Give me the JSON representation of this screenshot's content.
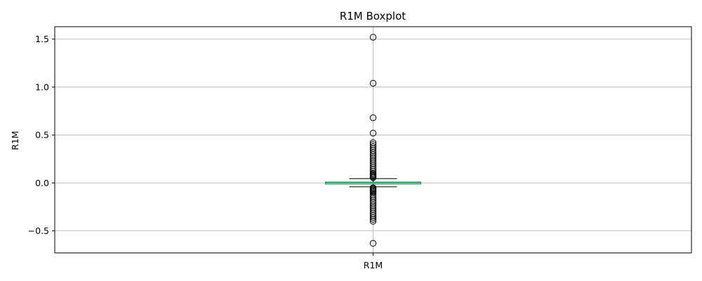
{
  "chart_data": {
    "type": "boxplot",
    "title": "R1M Boxplot",
    "xlabel": "",
    "ylabel": "R1M",
    "categories": [
      "R1M"
    ],
    "ylim": [
      -0.73,
      1.63
    ],
    "yticks": [
      -0.5,
      0.0,
      0.5,
      1.0,
      1.5
    ],
    "ytick_labels": [
      "−0.5",
      "0.0",
      "0.5",
      "1.0",
      "1.5"
    ],
    "grid": true,
    "box": {
      "q1": -0.012,
      "median": 0.0,
      "q3": 0.01,
      "whisker_low": -0.04,
      "whisker_high": 0.045
    },
    "outliers": [
      1.52,
      1.04,
      0.68,
      0.52,
      0.42,
      0.4,
      0.38,
      0.36,
      0.34,
      0.32,
      0.3,
      0.28,
      0.26,
      0.24,
      0.22,
      0.2,
      0.18,
      0.16,
      0.14,
      0.12,
      0.1,
      0.09,
      0.08,
      0.07,
      0.06,
      0.055,
      -0.05,
      -0.06,
      -0.07,
      -0.08,
      -0.09,
      -0.1,
      -0.12,
      -0.14,
      -0.16,
      -0.18,
      -0.2,
      -0.22,
      -0.24,
      -0.26,
      -0.28,
      -0.3,
      -0.32,
      -0.34,
      -0.36,
      -0.38,
      -0.4,
      -0.63
    ],
    "colors": {
      "box": "#1f77b4",
      "median": "#2ca02c",
      "whisker": "#000000",
      "grid": "#b0b0b0",
      "outlier_edge": "#000000"
    }
  }
}
